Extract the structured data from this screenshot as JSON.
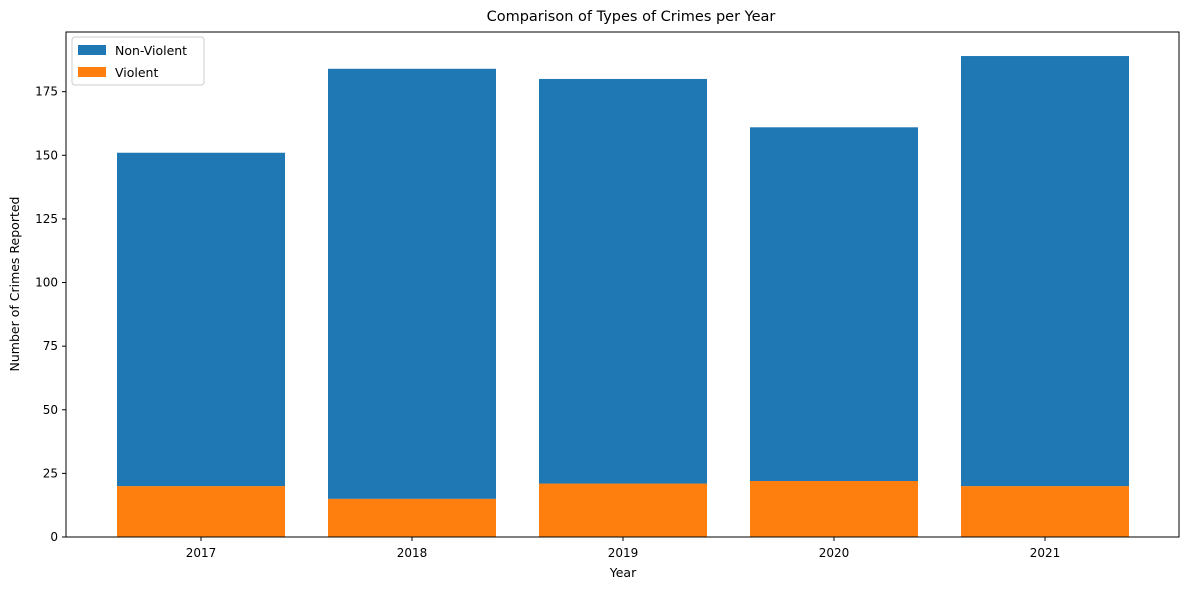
{
  "chart_data": {
    "type": "bar",
    "stacked": true,
    "title": "Comparison of Types of Crimes per Year",
    "xlabel": "Year",
    "ylabel": "Number of Crimes Reported",
    "categories": [
      "2017",
      "2018",
      "2019",
      "2020",
      "2021"
    ],
    "series": [
      {
        "name": "Violent",
        "color": "#ff7f0e",
        "values": [
          20,
          15,
          21,
          22,
          20
        ]
      },
      {
        "name": "Non-Violent",
        "color": "#1f77b4",
        "values": [
          131,
          169,
          159,
          139,
          169
        ]
      }
    ],
    "totals": [
      151,
      184,
      180,
      161,
      189
    ],
    "ylim": [
      0,
      198.45
    ],
    "yticks": [
      0,
      25,
      50,
      75,
      100,
      125,
      150,
      175
    ],
    "grid": false,
    "legend": {
      "placement": "top-left",
      "entries": [
        {
          "label": "Non-Violent",
          "color": "#1f77b4"
        },
        {
          "label": "Violent",
          "color": "#ff7f0e"
        }
      ]
    }
  }
}
